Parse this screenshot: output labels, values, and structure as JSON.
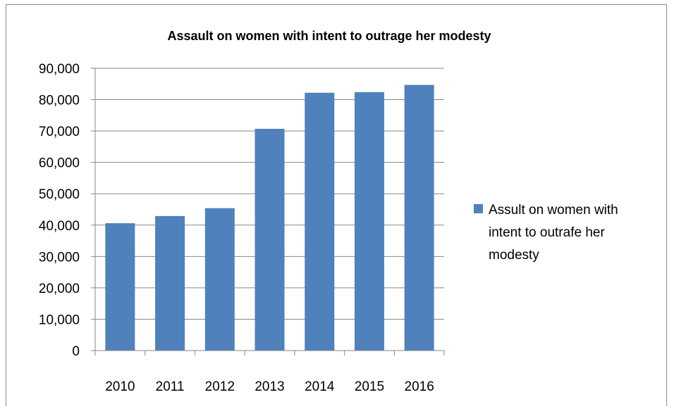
{
  "chart_data": {
    "type": "bar",
    "title": "Assault on women with intent to outrage her modesty",
    "xlabel": "",
    "ylabel": "",
    "categories": [
      "2010",
      "2011",
      "2012",
      "2013",
      "2014",
      "2015",
      "2016"
    ],
    "series": [
      {
        "name": "Assult on women with intent to outrafe her modesty",
        "values": [
          40600,
          42900,
          45400,
          70700,
          82200,
          82400,
          84700
        ],
        "color": "#4f81bd"
      }
    ],
    "ylim": [
      0,
      90000
    ],
    "y_ticks": [
      "0",
      "10,000",
      "20,000",
      "30,000",
      "40,000",
      "50,000",
      "60,000",
      "70,000",
      "80,000",
      "90,000"
    ],
    "grid": true,
    "legend_position": "right",
    "legend_lines": [
      "Assult on women with",
      "intent to outrafe her",
      "modesty"
    ]
  }
}
